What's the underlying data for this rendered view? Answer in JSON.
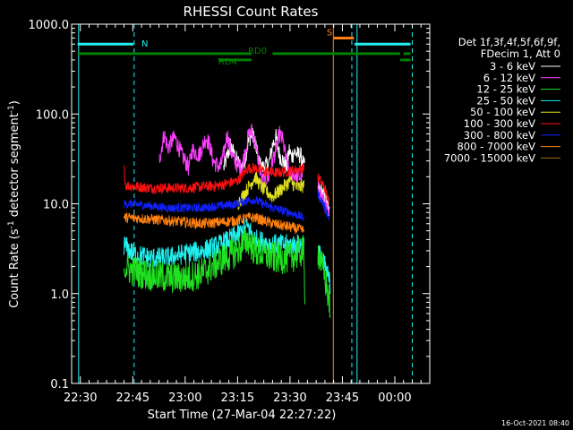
{
  "chart_data": {
    "type": "line",
    "title": "RHESSI Count Rates",
    "xlabel": "Start Time (27-Mar-04 22:27:22)",
    "ylabel_parts": [
      "Count Rate (s",
      "-1",
      " detector segment",
      "-1",
      ")"
    ],
    "yscale": "log",
    "ylim": [
      0.1,
      1000.0
    ],
    "xlim_min": [
      -2.5,
      100
    ],
    "y_ticks": [
      {
        "value": 1000.0,
        "label": "1000.0"
      },
      {
        "value": 100.0,
        "label": "100.0"
      },
      {
        "value": 10.0,
        "label": "10.0"
      },
      {
        "value": 1.0,
        "label": "1.0"
      },
      {
        "value": 0.1,
        "label": "0.1"
      }
    ],
    "x_ticks": [
      {
        "value": 0,
        "label": "22:30"
      },
      {
        "value": 15,
        "label": "22:45"
      },
      {
        "value": 30,
        "label": "23:00"
      },
      {
        "value": 45,
        "label": "23:15"
      },
      {
        "value": 60,
        "label": "23:30"
      },
      {
        "value": 75,
        "label": "23:45"
      },
      {
        "value": 90,
        "label": "00:00"
      }
    ],
    "legend": {
      "placement": "right",
      "header": [
        "Det 1f,3f,4f,5f,6f,9f,",
        "FDecim 1, Att 0"
      ],
      "entries": [
        {
          "label": "3 - 6 keV",
          "color": "#ffffff"
        },
        {
          "label": "6 - 12 keV",
          "color": "#ff40ff"
        },
        {
          "label": "12 - 25 keV",
          "color": "#20e020"
        },
        {
          "label": "25 - 50 keV",
          "color": "#20f0f0"
        },
        {
          "label": "50 - 100 keV",
          "color": "#e0e020"
        },
        {
          "label": "100 - 300 keV",
          "color": "#ff1010"
        },
        {
          "label": "300 - 800 keV",
          "color": "#1020ff"
        },
        {
          "label": "800 - 7000 keV",
          "color": "#ff8010"
        },
        {
          "label": "7000 - 15000 keV",
          "color": "#a06810"
        }
      ]
    },
    "series_segments": [
      {
        "name": "3 - 6 keV",
        "color": "#ffffff",
        "noise": 0.1,
        "segments": [
          {
            "x": [
              41,
              43,
              44,
              46,
              47,
              48,
              49,
              50,
              51,
              52,
              54,
              55,
              56,
              57,
              58,
              59,
              59.8,
              60.4,
              61.2,
              62.2,
              63,
              63.8,
              64.2
            ],
            "y": [
              25,
              45,
              35,
              25,
              30,
              48,
              60,
              50,
              30,
              25,
              28,
              45,
              55,
              35,
              30,
              25,
              40,
              33,
              38,
              35,
              35,
              28,
              25
            ]
          },
          {
            "x": [
              68,
              70,
              71.2
            ],
            "y": [
              15,
              12,
              8
            ]
          }
        ]
      },
      {
        "name": "6 - 12 keV",
        "color": "#ff40ff",
        "noise": 0.1,
        "segments": [
          {
            "x": [
              22.5,
              24,
              25,
              27,
              29,
              30,
              31,
              32,
              34,
              36,
              37,
              38,
              40,
              41,
              42,
              43,
              44,
              46,
              47,
              48,
              49,
              50,
              51,
              52,
              54,
              55,
              56,
              57,
              58,
              59,
              60,
              61,
              62,
              63,
              64
            ],
            "y": [
              30,
              60,
              42,
              55,
              35,
              30,
              25,
              40,
              35,
              55,
              45,
              30,
              25,
              35,
              60,
              40,
              30,
              25,
              35,
              55,
              65,
              50,
              30,
              18,
              20,
              30,
              40,
              60,
              50,
              30,
              20,
              22,
              20,
              20,
              25
            ]
          },
          {
            "x": [
              68,
              70,
              71.2
            ],
            "y": [
              15,
              10,
              7
            ]
          }
        ]
      },
      {
        "name": "100 - 300 keV",
        "color": "#ff1010",
        "noise": 0.06,
        "segments": [
          {
            "x": [
              12.5,
              13,
              20,
              30,
              40,
              45,
              48,
              50,
              55,
              60,
              64
            ],
            "y": [
              25,
              16,
              15,
              15,
              16,
              18,
              25,
              25,
              22,
              23,
              25
            ]
          },
          {
            "x": [
              68,
              70,
              71.2
            ],
            "y": [
              20,
              15,
              10
            ]
          }
        ]
      },
      {
        "name": "50 - 100 keV",
        "color": "#e0e020",
        "noise": 0.08,
        "segments": [
          {
            "x": [
              45,
              48,
              50,
              52,
              55,
              57,
              60,
              62,
              64
            ],
            "y": [
              10,
              15,
              20,
              15,
              12,
              14,
              18,
              15,
              16
            ]
          }
        ]
      },
      {
        "name": "300 - 800 keV",
        "color": "#1020ff",
        "noise": 0.05,
        "segments": [
          {
            "x": [
              12.5,
              15,
              25,
              35,
              45,
              48,
              50,
              55,
              60,
              64
            ],
            "y": [
              10,
              10,
              9,
              9,
              10,
              11,
              11,
              9,
              8,
              7
            ]
          },
          {
            "x": [
              68,
              70,
              71.2
            ],
            "y": [
              13,
              9,
              7
            ]
          }
        ]
      },
      {
        "name": "800 - 7000 keV",
        "color": "#ff8010",
        "noise": 0.06,
        "segments": [
          {
            "x": [
              12.5,
              15,
              25,
              35,
              45,
              48,
              50,
              55,
              60,
              64
            ],
            "y": [
              7,
              7,
              6.5,
              6,
              6.5,
              7,
              7,
              6,
              5.5,
              5
            ]
          }
        ]
      },
      {
        "name": "25 - 50 keV",
        "color": "#20f0f0",
        "noise": 0.12,
        "segments": [
          {
            "x": [
              12.5,
              15,
              20,
              25,
              30,
              35,
              40,
              45,
              48,
              50,
              55,
              60,
              64
            ],
            "y": [
              3.5,
              2.8,
              2.5,
              2.5,
              2.8,
              3,
              3.5,
              4.5,
              5.5,
              4,
              3.5,
              3.5,
              3.5
            ]
          },
          {
            "x": [
              68,
              70,
              71.5
            ],
            "y": [
              3,
              2,
              1.3
            ]
          }
        ]
      },
      {
        "name": "12 - 25 keV",
        "color": "#20e020",
        "noise": 0.18,
        "segments": [
          {
            "x": [
              12.5,
              15,
              20,
              25,
              30,
              35,
              40,
              45,
              48,
              50,
              55,
              60,
              63.8,
              64.3
            ],
            "y": [
              2,
              1.8,
              1.6,
              1.5,
              1.5,
              1.7,
              2.3,
              3,
              4,
              3,
              2.5,
              2.5,
              3,
              1
            ]
          },
          {
            "x": [
              68,
              70,
              71.5
            ],
            "y": [
              3,
              1.5,
              0.7
            ]
          }
        ]
      }
    ],
    "annotations": [
      {
        "label": "N",
        "color": "#20f0f0",
        "x": 17.5,
        "y": 600
      },
      {
        "label": "S",
        "color": "#ff8010",
        "x": 70.5,
        "y": 800
      },
      {
        "label": "RD0",
        "color": "#008000",
        "x": 48,
        "y": 500
      },
      {
        "label": "RD4",
        "color": "#008000",
        "x": 39.5,
        "y": 380
      }
    ],
    "bars": [
      {
        "color": "#20f0f0",
        "y": 600,
        "ranges": [
          [
            -0.8,
            15.2
          ],
          [
            78.5,
            94.5
          ]
        ]
      },
      {
        "color": "#ff8010",
        "y": 700,
        "ranges": [
          [
            72.5,
            78.3
          ]
        ]
      },
      {
        "color": "#008000",
        "y": 470,
        "ranges": [
          [
            -0.8,
            49
          ],
          [
            55,
            91.5
          ],
          [
            92.5,
            94.5
          ]
        ]
      },
      {
        "color": "#008000",
        "y": 400,
        "ranges": [
          [
            39.5,
            49
          ],
          [
            91.5,
            94.5
          ]
        ]
      }
    ],
    "vlines": [
      {
        "x": -0.5,
        "color": "#20f0f0",
        "dash": false
      },
      {
        "x": 15.4,
        "color": "#20f0f0",
        "dash": true
      },
      {
        "x": 72.4,
        "color": "#ff8010",
        "dash": false
      },
      {
        "x": 79.2,
        "color": "#20f0f0",
        "dash": false
      },
      {
        "x": 77.7,
        "color": "#20f0f0",
        "dash": true
      },
      {
        "x": 95,
        "color": "#20f0f0",
        "dash": true
      }
    ],
    "footer": "16-Oct-2021 08:40"
  }
}
